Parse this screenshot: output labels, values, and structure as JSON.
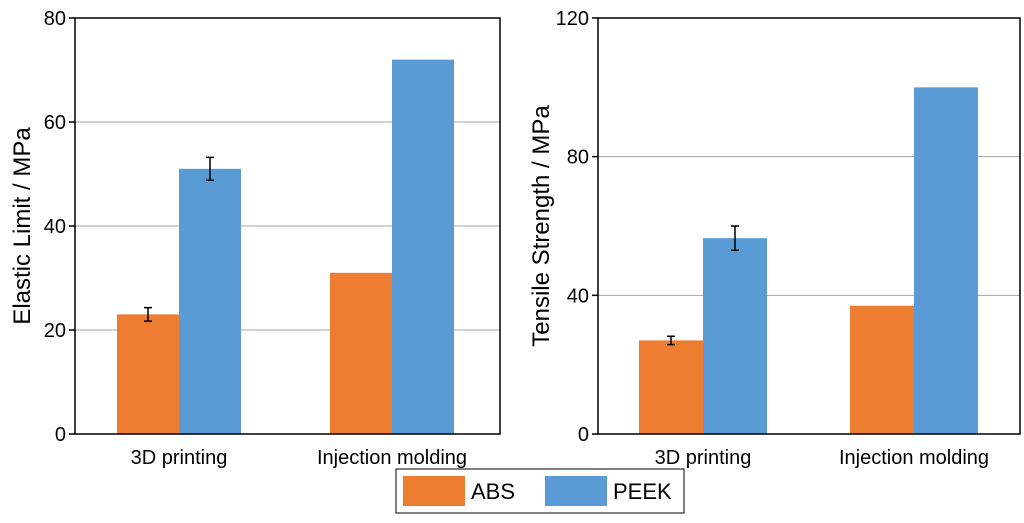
{
  "legend": {
    "items": [
      {
        "label": "ABS",
        "color": "#ED7D31"
      },
      {
        "label": "PEEK",
        "color": "#5B9BD5"
      }
    ]
  },
  "chart_data": [
    {
      "type": "bar",
      "title": "",
      "xlabel": "",
      "ylabel": "Elastic Limit / MPa",
      "ylim": [
        0,
        80
      ],
      "yticks": [
        "0",
        "20",
        "40",
        "60",
        "80"
      ],
      "grid": true,
      "categories": [
        "3D printing",
        "Injection molding"
      ],
      "series": [
        {
          "name": "ABS",
          "color": "#ED7D31",
          "values": [
            23,
            31
          ],
          "errors": [
            1.3,
            null
          ]
        },
        {
          "name": "PEEK",
          "color": "#5B9BD5",
          "values": [
            51,
            72
          ],
          "errors": [
            2.2,
            null
          ]
        }
      ]
    },
    {
      "type": "bar",
      "title": "",
      "xlabel": "",
      "ylabel": "Tensile Strength / MPa",
      "ylim": [
        0,
        120
      ],
      "yticks": [
        "0",
        "40",
        "80",
        "120"
      ],
      "grid": true,
      "categories": [
        "3D printing",
        "Injection molding"
      ],
      "series": [
        {
          "name": "ABS",
          "color": "#ED7D31",
          "values": [
            27,
            37
          ],
          "errors": [
            1.2,
            null
          ]
        },
        {
          "name": "PEEK",
          "color": "#5B9BD5",
          "values": [
            56.5,
            100
          ],
          "errors": [
            3.5,
            null
          ]
        }
      ]
    }
  ]
}
